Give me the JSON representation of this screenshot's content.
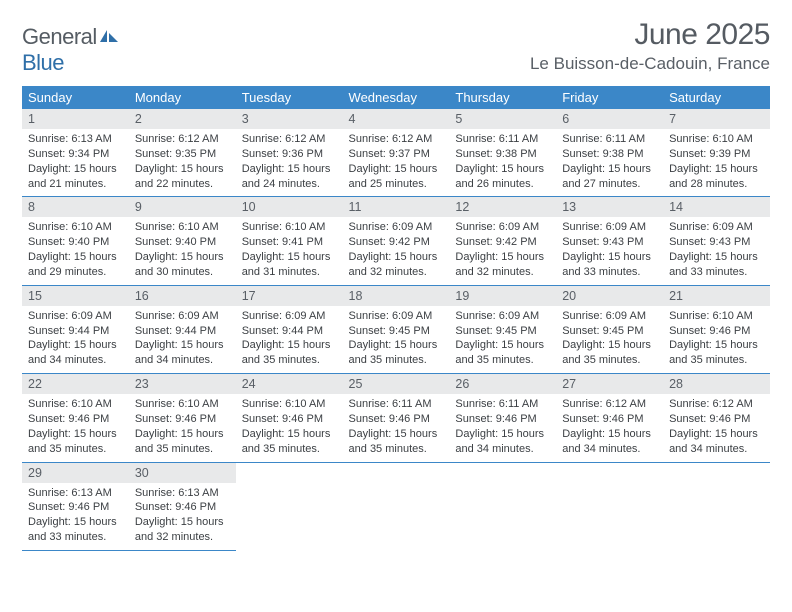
{
  "logo": {
    "text1": "General",
    "text2": "Blue"
  },
  "title": "June 2025",
  "location": "Le Buisson-de-Cadouin, France",
  "colors": {
    "header_bg": "#3b87c8",
    "header_text": "#ffffff",
    "daynum_bg": "#e8e9ea",
    "text_main": "#3b3f43",
    "text_muted": "#595f66",
    "row_border": "#3b87c8"
  },
  "dows": [
    "Sunday",
    "Monday",
    "Tuesday",
    "Wednesday",
    "Thursday",
    "Friday",
    "Saturday"
  ],
  "weeks": [
    [
      {
        "n": "1",
        "sr": "6:13 AM",
        "ss": "9:34 PM",
        "dl": "15 hours and 21 minutes."
      },
      {
        "n": "2",
        "sr": "6:12 AM",
        "ss": "9:35 PM",
        "dl": "15 hours and 22 minutes."
      },
      {
        "n": "3",
        "sr": "6:12 AM",
        "ss": "9:36 PM",
        "dl": "15 hours and 24 minutes."
      },
      {
        "n": "4",
        "sr": "6:12 AM",
        "ss": "9:37 PM",
        "dl": "15 hours and 25 minutes."
      },
      {
        "n": "5",
        "sr": "6:11 AM",
        "ss": "9:38 PM",
        "dl": "15 hours and 26 minutes."
      },
      {
        "n": "6",
        "sr": "6:11 AM",
        "ss": "9:38 PM",
        "dl": "15 hours and 27 minutes."
      },
      {
        "n": "7",
        "sr": "6:10 AM",
        "ss": "9:39 PM",
        "dl": "15 hours and 28 minutes."
      }
    ],
    [
      {
        "n": "8",
        "sr": "6:10 AM",
        "ss": "9:40 PM",
        "dl": "15 hours and 29 minutes."
      },
      {
        "n": "9",
        "sr": "6:10 AM",
        "ss": "9:40 PM",
        "dl": "15 hours and 30 minutes."
      },
      {
        "n": "10",
        "sr": "6:10 AM",
        "ss": "9:41 PM",
        "dl": "15 hours and 31 minutes."
      },
      {
        "n": "11",
        "sr": "6:09 AM",
        "ss": "9:42 PM",
        "dl": "15 hours and 32 minutes."
      },
      {
        "n": "12",
        "sr": "6:09 AM",
        "ss": "9:42 PM",
        "dl": "15 hours and 32 minutes."
      },
      {
        "n": "13",
        "sr": "6:09 AM",
        "ss": "9:43 PM",
        "dl": "15 hours and 33 minutes."
      },
      {
        "n": "14",
        "sr": "6:09 AM",
        "ss": "9:43 PM",
        "dl": "15 hours and 33 minutes."
      }
    ],
    [
      {
        "n": "15",
        "sr": "6:09 AM",
        "ss": "9:44 PM",
        "dl": "15 hours and 34 minutes."
      },
      {
        "n": "16",
        "sr": "6:09 AM",
        "ss": "9:44 PM",
        "dl": "15 hours and 34 minutes."
      },
      {
        "n": "17",
        "sr": "6:09 AM",
        "ss": "9:44 PM",
        "dl": "15 hours and 35 minutes."
      },
      {
        "n": "18",
        "sr": "6:09 AM",
        "ss": "9:45 PM",
        "dl": "15 hours and 35 minutes."
      },
      {
        "n": "19",
        "sr": "6:09 AM",
        "ss": "9:45 PM",
        "dl": "15 hours and 35 minutes."
      },
      {
        "n": "20",
        "sr": "6:09 AM",
        "ss": "9:45 PM",
        "dl": "15 hours and 35 minutes."
      },
      {
        "n": "21",
        "sr": "6:10 AM",
        "ss": "9:46 PM",
        "dl": "15 hours and 35 minutes."
      }
    ],
    [
      {
        "n": "22",
        "sr": "6:10 AM",
        "ss": "9:46 PM",
        "dl": "15 hours and 35 minutes."
      },
      {
        "n": "23",
        "sr": "6:10 AM",
        "ss": "9:46 PM",
        "dl": "15 hours and 35 minutes."
      },
      {
        "n": "24",
        "sr": "6:10 AM",
        "ss": "9:46 PM",
        "dl": "15 hours and 35 minutes."
      },
      {
        "n": "25",
        "sr": "6:11 AM",
        "ss": "9:46 PM",
        "dl": "15 hours and 35 minutes."
      },
      {
        "n": "26",
        "sr": "6:11 AM",
        "ss": "9:46 PM",
        "dl": "15 hours and 34 minutes."
      },
      {
        "n": "27",
        "sr": "6:12 AM",
        "ss": "9:46 PM",
        "dl": "15 hours and 34 minutes."
      },
      {
        "n": "28",
        "sr": "6:12 AM",
        "ss": "9:46 PM",
        "dl": "15 hours and 34 minutes."
      }
    ],
    [
      {
        "n": "29",
        "sr": "6:13 AM",
        "ss": "9:46 PM",
        "dl": "15 hours and 33 minutes."
      },
      {
        "n": "30",
        "sr": "6:13 AM",
        "ss": "9:46 PM",
        "dl": "15 hours and 32 minutes."
      },
      null,
      null,
      null,
      null,
      null
    ]
  ],
  "labels": {
    "sunrise": "Sunrise:",
    "sunset": "Sunset:",
    "daylight": "Daylight:"
  }
}
